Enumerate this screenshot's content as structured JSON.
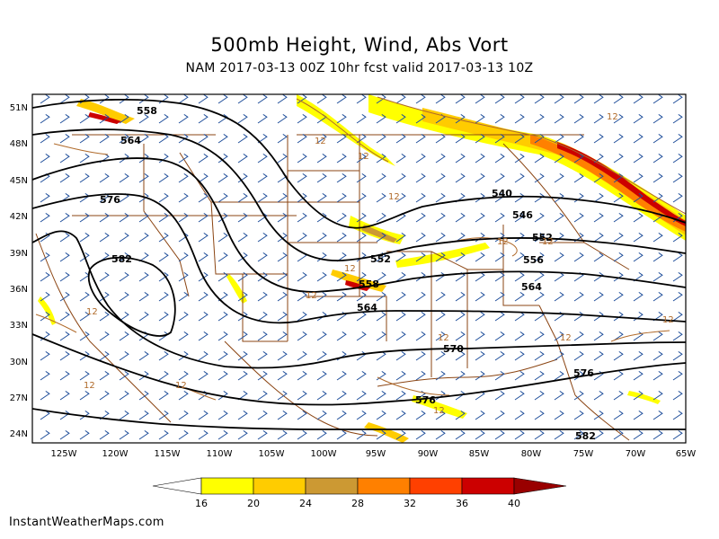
{
  "header": {
    "title": "500mb Height, Wind, Abs Vort",
    "subtitle": "NAM 2017-03-13 00Z 10hr fcst valid 2017-03-13 10Z"
  },
  "map": {
    "lat_labels": [
      "51N",
      "48N",
      "45N",
      "42N",
      "39N",
      "36N",
      "33N",
      "30N",
      "27N",
      "24N"
    ],
    "lon_labels": [
      "125W",
      "120W",
      "115W",
      "110W",
      "105W",
      "100W",
      "95W",
      "90W",
      "85W",
      "80W",
      "75W",
      "70W",
      "65W"
    ],
    "height_labels": [
      "558",
      "564",
      "576",
      "582",
      "540",
      "546",
      "552",
      "556",
      "552",
      "558",
      "564",
      "564",
      "570",
      "576",
      "576",
      "582"
    ],
    "vort_label": "12"
  },
  "legend": {
    "values": [
      "16",
      "20",
      "24",
      "28",
      "32",
      "36",
      "40"
    ],
    "colors": [
      "#ffffff",
      "#ffff00",
      "#ffcc00",
      "#cc9933",
      "#ff8000",
      "#ff4000",
      "#cc0000",
      "#990000"
    ]
  },
  "footer": {
    "watermark": "InstantWeatherMaps.com"
  }
}
